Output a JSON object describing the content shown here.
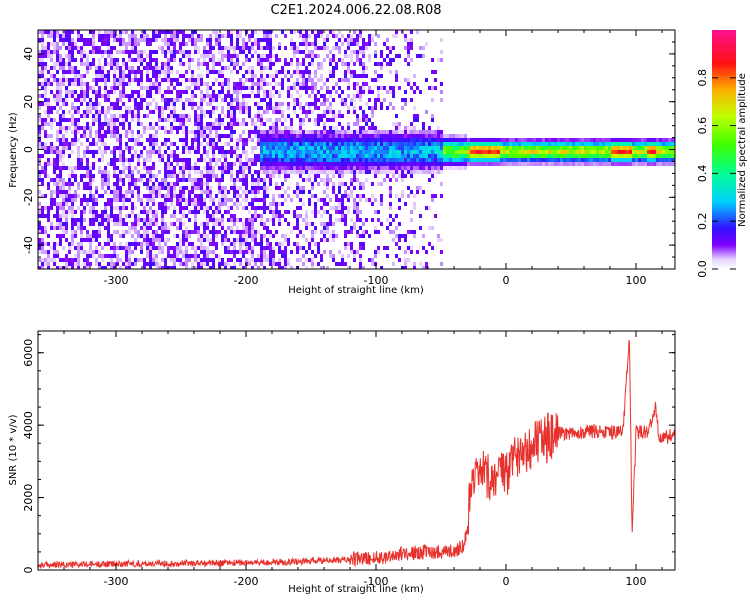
{
  "title": "C2E1.2024.006.22.08.R08",
  "chart_data": [
    {
      "type": "heatmap",
      "xlabel": "Height of straight line (km)",
      "ylabel": "Frequency (Hz)",
      "xlim": [
        -360,
        130
      ],
      "ylim": [
        -50,
        50
      ],
      "x_ticks": [
        -300,
        -200,
        -100,
        0,
        100
      ],
      "y_ticks": [
        -40,
        -20,
        0,
        20,
        40
      ],
      "colorbar": {
        "label": "Normalized spectral amplitude",
        "ticks": [
          "0.0",
          "0.2",
          "0.4",
          "0.6",
          "0.8"
        ],
        "range": [
          0,
          1
        ],
        "colormap": "rainbow"
      },
      "features": [
        {
          "name": "noise",
          "x_range": [
            -360,
            -50
          ],
          "y_range": [
            -50,
            50
          ]
        },
        {
          "name": "signal_band",
          "x_range": [
            -190,
            130
          ],
          "center_freq": 0
        }
      ]
    },
    {
      "type": "line",
      "xlabel": "Height of straight line (km)",
      "ylabel": "SNR (10 * v/v)",
      "xlim": [
        -360,
        130
      ],
      "ylim": [
        0,
        6600
      ],
      "x_ticks": [
        -300,
        -200,
        -100,
        0,
        100
      ],
      "y_ticks": [
        0,
        2000,
        4000,
        6000
      ],
      "color": "#e8312d",
      "series_points": [
        [
          -360,
          130
        ],
        [
          -300,
          170
        ],
        [
          -200,
          200
        ],
        [
          -150,
          240
        ],
        [
          -100,
          330
        ],
        [
          -80,
          450
        ],
        [
          -60,
          500
        ],
        [
          -40,
          520
        ],
        [
          -32,
          700
        ],
        [
          -28,
          1800
        ],
        [
          -25,
          2300
        ],
        [
          -20,
          2700
        ],
        [
          -15,
          2500
        ],
        [
          -10,
          2600
        ],
        [
          -5,
          2700
        ],
        [
          0,
          2500
        ],
        [
          5,
          3000
        ],
        [
          10,
          3300
        ],
        [
          20,
          3450
        ],
        [
          30,
          3600
        ],
        [
          40,
          3750
        ],
        [
          50,
          3800
        ],
        [
          60,
          3800
        ],
        [
          70,
          3850
        ],
        [
          80,
          3800
        ],
        [
          90,
          3800
        ],
        [
          93,
          5500
        ],
        [
          95,
          6300
        ],
        [
          97,
          1000
        ],
        [
          100,
          3800
        ],
        [
          110,
          3850
        ],
        [
          115,
          4500
        ],
        [
          118,
          3600
        ],
        [
          130,
          3750
        ]
      ]
    }
  ]
}
